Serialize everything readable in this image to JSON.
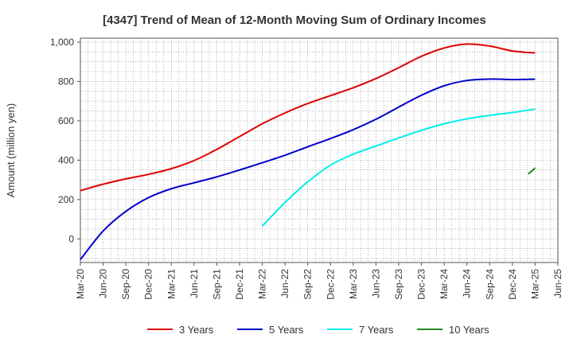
{
  "chart_data": {
    "type": "line",
    "title": "[4347]  Trend of Mean of 12-Month Moving Sum of Ordinary Incomes",
    "ylabel": "Amount (million yen)",
    "xlabel": "",
    "ylim": [
      -120,
      1020
    ],
    "yticks": [
      0,
      200,
      400,
      600,
      800,
      1000
    ],
    "ytick_labels": [
      "0",
      "200",
      "400",
      "600",
      "800",
      "1,000"
    ],
    "x_categories": [
      "Mar-20",
      "Jun-20",
      "Sep-20",
      "Dec-20",
      "Mar-21",
      "Jun-21",
      "Sep-21",
      "Dec-21",
      "Mar-22",
      "Jun-22",
      "Sep-22",
      "Dec-22",
      "Mar-23",
      "Jun-23",
      "Sep-23",
      "Dec-23",
      "Mar-24",
      "Jun-24",
      "Sep-24",
      "Dec-24",
      "Mar-25",
      "Jun-25"
    ],
    "grid": true,
    "legend_position": "bottom",
    "series": [
      {
        "name": "3 Years",
        "color": "#dd0000",
        "start_index": 0,
        "values": [
          245,
          278,
          305,
          328,
          357,
          398,
          455,
          520,
          585,
          640,
          688,
          728,
          768,
          815,
          870,
          928,
          970,
          990,
          980,
          955,
          945
        ]
      },
      {
        "name": "5 Years",
        "color": "#0000cc",
        "start_index": 0,
        "values": [
          -105,
          40,
          140,
          210,
          255,
          285,
          315,
          350,
          387,
          425,
          468,
          510,
          555,
          608,
          670,
          730,
          778,
          805,
          812,
          810,
          812
        ]
      },
      {
        "name": "7 Years",
        "color": "#00eeee",
        "start_index": 8,
        "values": [
          65,
          185,
          290,
          375,
          430,
          472,
          513,
          552,
          585,
          610,
          628,
          642,
          660
        ]
      },
      {
        "name": "10 Years",
        "color": "#228b22",
        "start_index": 19.7,
        "values": [
          330,
          360
        ]
      }
    ]
  }
}
